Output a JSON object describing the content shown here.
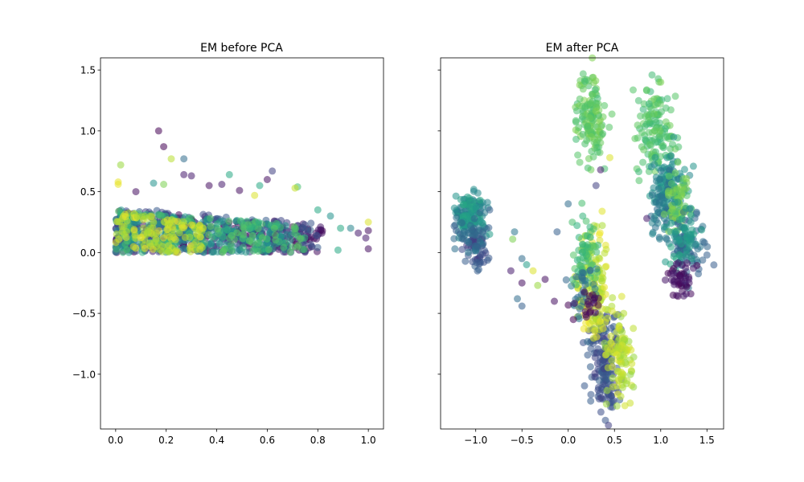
{
  "chart_data": [
    {
      "type": "scatter",
      "title": "EM before PCA",
      "xlabel": "",
      "ylabel": "",
      "xlim": [
        -0.06,
        1.06
      ],
      "ylim": [
        -1.45,
        1.6
      ],
      "xticks": [
        0.0,
        0.2,
        0.4,
        0.6,
        0.8,
        1.0
      ],
      "xtick_labels": [
        "0.0",
        "0.2",
        "0.4",
        "0.6",
        "0.8",
        "1.0"
      ],
      "yticks": [
        1.5,
        1.0,
        0.5,
        0.0,
        -0.5,
        -1.0
      ],
      "ytick_labels": [
        "1.5",
        "1.0",
        "0.5",
        "0.0",
        "−0.5",
        "−1.0"
      ],
      "grid": false,
      "colormap": "viridis",
      "alpha": 0.55,
      "clusters": [
        {
          "c": 0.05,
          "cx": [
            0.0,
            0.82
          ],
          "cy": [
            0.0,
            0.36
          ],
          "n": 260
        },
        {
          "c": 0.25,
          "cx": [
            0.0,
            0.8
          ],
          "cy": [
            0.0,
            0.38
          ],
          "n": 220
        },
        {
          "c": 0.5,
          "cx": [
            0.0,
            0.7
          ],
          "cy": [
            0.0,
            0.36
          ],
          "n": 200
        },
        {
          "c": 0.7,
          "cx": [
            0.0,
            0.75
          ],
          "cy": [
            0.0,
            0.35
          ],
          "n": 160
        },
        {
          "c": 0.92,
          "cx": [
            0.0,
            0.35
          ],
          "cy": [
            0.0,
            0.36
          ],
          "n": 120
        }
      ],
      "points": [
        {
          "x": 0.17,
          "y": 1.0,
          "c": 0.0
        },
        {
          "x": 0.19,
          "y": 0.87,
          "c": 0.0
        },
        {
          "x": 0.27,
          "y": 0.77,
          "c": 0.35
        },
        {
          "x": 0.22,
          "y": 0.77,
          "c": 0.9
        },
        {
          "x": 0.02,
          "y": 0.72,
          "c": 0.85
        },
        {
          "x": 0.01,
          "y": 0.58,
          "c": 0.97
        },
        {
          "x": 0.01,
          "y": 0.56,
          "c": 0.97
        },
        {
          "x": 0.27,
          "y": 0.64,
          "c": 0.1
        },
        {
          "x": 0.3,
          "y": 0.63,
          "c": 0.1
        },
        {
          "x": 0.45,
          "y": 0.64,
          "c": 0.6
        },
        {
          "x": 0.62,
          "y": 0.67,
          "c": 0.2
        },
        {
          "x": 0.6,
          "y": 0.6,
          "c": 0.05
        },
        {
          "x": 0.57,
          "y": 0.55,
          "c": 0.6
        },
        {
          "x": 0.72,
          "y": 0.54,
          "c": 0.7
        },
        {
          "x": 0.71,
          "y": 0.53,
          "c": 0.92
        },
        {
          "x": 0.42,
          "y": 0.56,
          "c": 0.1
        },
        {
          "x": 0.37,
          "y": 0.55,
          "c": 0.05
        },
        {
          "x": 0.15,
          "y": 0.57,
          "c": 0.5
        },
        {
          "x": 0.19,
          "y": 0.56,
          "c": 0.8
        },
        {
          "x": 0.08,
          "y": 0.5,
          "c": 0.05
        },
        {
          "x": 0.49,
          "y": 0.51,
          "c": 0.05
        },
        {
          "x": 0.55,
          "y": 0.47,
          "c": 0.95
        },
        {
          "x": 0.89,
          "y": 0.2,
          "c": 0.6
        },
        {
          "x": 0.88,
          "y": 0.02,
          "c": 0.6
        },
        {
          "x": 0.93,
          "y": 0.2,
          "c": 0.45
        },
        {
          "x": 0.96,
          "y": 0.16,
          "c": 0.1
        },
        {
          "x": 0.99,
          "y": 0.12,
          "c": 0.1
        },
        {
          "x": 1.0,
          "y": 0.18,
          "c": 0.05
        },
        {
          "x": 1.0,
          "y": 0.03,
          "c": 0.05
        },
        {
          "x": 1.0,
          "y": 0.25,
          "c": 0.95
        },
        {
          "x": 0.85,
          "y": 0.3,
          "c": 0.5
        },
        {
          "x": 0.8,
          "y": 0.35,
          "c": 0.6
        }
      ]
    },
    {
      "type": "scatter",
      "title": "EM after PCA",
      "xlabel": "",
      "ylabel": "",
      "xlim": [
        -1.38,
        1.68
      ],
      "ylim": [
        -1.45,
        1.6
      ],
      "xticks": [
        -1.0,
        -0.5,
        0.0,
        0.5,
        1.0,
        1.5
      ],
      "xtick_labels": [
        "−1.0",
        "−0.5",
        "0.0",
        "0.5",
        "1.0",
        "1.5"
      ],
      "yticks": [
        1.5,
        1.0,
        0.5,
        0.0,
        -0.5,
        -1.0
      ],
      "grid": false,
      "sharey": true,
      "colormap": "viridis",
      "alpha": 0.55,
      "clusters": [
        {
          "c": 0.45,
          "cx": -1.05,
          "cy": 0.3,
          "sx": 0.09,
          "sy": 0.1,
          "n": 90
        },
        {
          "c": 0.55,
          "cx": -1.05,
          "cy": 0.33,
          "sx": 0.07,
          "sy": 0.06,
          "n": 40
        },
        {
          "c": 0.25,
          "cx": -1.0,
          "cy": 0.05,
          "sx": 0.07,
          "sy": 0.08,
          "n": 50
        },
        {
          "c": 0.35,
          "cx": -1.05,
          "cy": 0.12,
          "sx": 0.09,
          "sy": 0.09,
          "n": 40
        },
        {
          "c": 0.75,
          "cx": 0.25,
          "cy": 1.1,
          "sx": 0.08,
          "sy": 0.17,
          "n": 140
        },
        {
          "c": 0.72,
          "cx": 0.95,
          "cy": 1.03,
          "sx": 0.1,
          "sy": 0.18,
          "n": 130
        },
        {
          "c": 0.5,
          "cx": 1.08,
          "cy": 0.5,
          "sx": 0.1,
          "sy": 0.15,
          "n": 110
        },
        {
          "c": 0.4,
          "cx": 1.05,
          "cy": 0.38,
          "sx": 0.08,
          "sy": 0.15,
          "n": 60
        },
        {
          "c": 0.78,
          "cx": 1.2,
          "cy": 0.4,
          "sx": 0.07,
          "sy": 0.12,
          "n": 60
        },
        {
          "c": 0.35,
          "cx": 1.3,
          "cy": 0.05,
          "sx": 0.1,
          "sy": 0.15,
          "n": 80
        },
        {
          "c": 0.55,
          "cx": 1.25,
          "cy": 0.12,
          "sx": 0.08,
          "sy": 0.12,
          "n": 50
        },
        {
          "c": 0.05,
          "cx": 1.22,
          "cy": -0.22,
          "sx": 0.07,
          "sy": 0.08,
          "n": 45
        },
        {
          "c": 0.25,
          "cx": 0.4,
          "cy": -0.95,
          "sx": 0.08,
          "sy": 0.2,
          "n": 130
        },
        {
          "c": 0.28,
          "cx": 0.35,
          "cy": -0.62,
          "sx": 0.08,
          "sy": 0.1,
          "n": 40
        },
        {
          "c": 0.9,
          "cx": 0.55,
          "cy": -0.85,
          "sx": 0.07,
          "sy": 0.18,
          "n": 100
        },
        {
          "c": 0.92,
          "cx": 0.27,
          "cy": -0.25,
          "sx": 0.09,
          "sy": 0.22,
          "n": 140
        },
        {
          "c": 0.7,
          "cx": 0.18,
          "cy": 0.0,
          "sx": 0.08,
          "sy": 0.15,
          "n": 60
        },
        {
          "c": 0.38,
          "cx": 0.15,
          "cy": -0.3,
          "sx": 0.08,
          "sy": 0.12,
          "n": 30
        },
        {
          "c": 0.0,
          "cx": 0.2,
          "cy": -0.45,
          "sx": 0.08,
          "sy": 0.06,
          "n": 20
        }
      ],
      "points": [
        {
          "x": -0.58,
          "y": 0.17,
          "c": 0.4
        },
        {
          "x": -0.6,
          "y": 0.11,
          "c": 0.8
        },
        {
          "x": -0.45,
          "y": -0.1,
          "c": 0.55
        },
        {
          "x": -0.5,
          "y": -0.05,
          "c": 0.35
        },
        {
          "x": -0.38,
          "y": -0.15,
          "c": 0.95
        },
        {
          "x": -0.62,
          "y": -0.15,
          "c": 0.1
        },
        {
          "x": -0.5,
          "y": -0.25,
          "c": 0.05
        },
        {
          "x": -0.55,
          "y": -0.38,
          "c": 0.35
        },
        {
          "x": -0.5,
          "y": -0.44,
          "c": 0.3
        },
        {
          "x": -0.33,
          "y": -0.27,
          "c": 0.85
        },
        {
          "x": -0.25,
          "y": -0.22,
          "c": 0.05
        },
        {
          "x": -0.85,
          "y": 0.15,
          "c": 0.55
        },
        {
          "x": -0.85,
          "y": 0.35,
          "c": 0.3
        },
        {
          "x": -0.12,
          "y": 0.17,
          "c": 0.3
        },
        {
          "x": -0.15,
          "y": -0.4,
          "c": 0.05
        },
        {
          "x": 0.0,
          "y": 0.4,
          "c": 0.35
        },
        {
          "x": 0.3,
          "y": 0.55,
          "c": 0.2
        },
        {
          "x": 0.35,
          "y": 0.68,
          "c": 0.1
        },
        {
          "x": 0.45,
          "y": 0.78,
          "c": 0.95
        },
        {
          "x": 0.85,
          "y": 0.28,
          "c": 0.1
        },
        {
          "x": 1.5,
          "y": -0.02,
          "c": 0.3
        },
        {
          "x": 1.0,
          "y": 1.4,
          "c": 0.8
        },
        {
          "x": 0.27,
          "y": 1.44,
          "c": 0.8
        }
      ]
    }
  ]
}
